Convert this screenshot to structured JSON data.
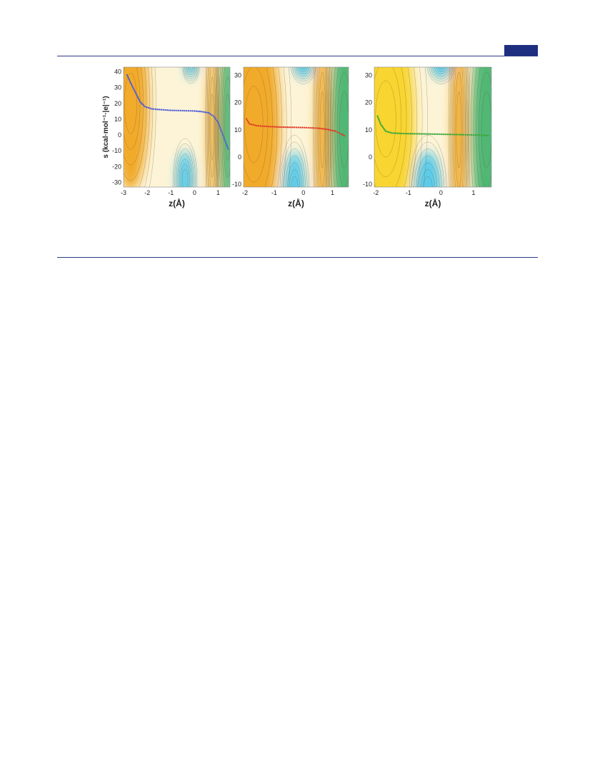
{
  "page": {
    "header_rule_color": "#2a3a8a",
    "badge_color": "#1f2f80"
  },
  "colors": {
    "orange": "#f0a21a",
    "yellow": "#f7d21e",
    "cream": "#fdf4d8",
    "white": "#ffffff",
    "cyan": "#49c6ec",
    "green": "#3db06a",
    "path_blue": "#4b5bd8",
    "path_red": "#e03a2a",
    "path_green": "#3aa83a"
  },
  "chart_data": [
    {
      "type": "heatmap",
      "description_label": "contour map",
      "xlabel": "z(Å)",
      "ylabel": "s (kcal·mol⁻¹·|e|⁻¹)",
      "xlim": [
        -3,
        1.5
      ],
      "ylim": [
        -33,
        43
      ],
      "xticks": [
        "-3",
        "-2",
        "-1",
        "0",
        "1"
      ],
      "xtick_values": [
        -3,
        -2,
        -1,
        0,
        1
      ],
      "yticks": [
        "40",
        "30",
        "20",
        "10",
        "0",
        "-10",
        "-20",
        "-30"
      ],
      "ytick_values": [
        40,
        30,
        20,
        10,
        0,
        -10,
        -20,
        -30
      ],
      "path_color": "blue",
      "path": {
        "x": [
          -2.85,
          -2.7,
          -2.5,
          -2.3,
          -2.1,
          -1.8,
          -1.4,
          -1.0,
          -0.5,
          0.0,
          0.3,
          0.6,
          0.8,
          1.0,
          1.15,
          1.3,
          1.45
        ],
        "y": [
          38,
          33,
          27,
          21,
          18,
          16.5,
          16,
          15.6,
          15.4,
          15.2,
          14.8,
          14,
          12,
          8,
          2,
          -4,
          -10
        ]
      },
      "regions": [
        {
          "color": "orange",
          "x": -2.7,
          "y": 20,
          "rx": 0.75,
          "ry": 55
        },
        {
          "color": "cyan",
          "x": -0.4,
          "y": -28,
          "rx": 0.35,
          "ry": 18
        },
        {
          "color": "cyan",
          "x": -0.15,
          "y": 44,
          "rx": 0.25,
          "ry": 8
        },
        {
          "color": "orange",
          "x": 0.75,
          "y": 5,
          "rx": 0.2,
          "ry": 60
        },
        {
          "color": "green",
          "x": 1.4,
          "y": 5,
          "rx": 0.35,
          "ry": 60
        }
      ]
    },
    {
      "type": "heatmap",
      "description_label": "contour map",
      "xlabel": "z(Å)",
      "ylabel": "",
      "xlim": [
        -2.05,
        1.55
      ],
      "ylim": [
        -11,
        33
      ],
      "xticks": [
        "-2",
        "-1",
        "0",
        "1"
      ],
      "xtick_values": [
        -2,
        -1,
        0,
        1
      ],
      "yticks": [
        "30",
        "20",
        "10",
        "0",
        "-10"
      ],
      "ytick_values": [
        30,
        20,
        10,
        0,
        -10
      ],
      "path_color": "red",
      "path": {
        "x": [
          -1.95,
          -1.85,
          -1.6,
          -1.2,
          -0.8,
          -0.3,
          0.1,
          0.5,
          0.8,
          1.1,
          1.3,
          1.45
        ],
        "y": [
          14,
          12.2,
          11.5,
          11.2,
          11,
          10.9,
          10.8,
          10.6,
          10.2,
          9.5,
          8.5,
          7.5
        ]
      },
      "regions": [
        {
          "color": "orange",
          "x": -1.7,
          "y": 12,
          "rx": 0.9,
          "ry": 40
        },
        {
          "color": "cyan",
          "x": -0.3,
          "y": -12,
          "rx": 0.35,
          "ry": 14
        },
        {
          "color": "cyan",
          "x": 0.0,
          "y": 34,
          "rx": 0.3,
          "ry": 5
        },
        {
          "color": "orange",
          "x": 0.65,
          "y": 10,
          "rx": 0.22,
          "ry": 40
        },
        {
          "color": "green",
          "x": 1.4,
          "y": 10,
          "rx": 0.45,
          "ry": 40
        }
      ]
    },
    {
      "type": "heatmap",
      "description_label": "contour map",
      "xlabel": "z(Å)",
      "ylabel": "",
      "xlim": [
        -2.05,
        1.55
      ],
      "ylim": [
        -11,
        33
      ],
      "xticks": [
        "-2",
        "-1",
        "0",
        "1"
      ],
      "xtick_values": [
        -2,
        -1,
        0,
        1
      ],
      "yticks": [
        "30",
        "20",
        "10",
        "0",
        "-10"
      ],
      "ytick_values": [
        30,
        20,
        10,
        0,
        -10
      ],
      "path_color": "green",
      "path": {
        "x": [
          -1.95,
          -1.85,
          -1.7,
          -1.5,
          -1.1,
          -0.6,
          -0.1,
          0.3,
          0.7,
          1.0,
          1.3,
          1.5
        ],
        "y": [
          15,
          12,
          9.5,
          8.8,
          8.6,
          8.5,
          8.4,
          8.3,
          8.2,
          8.1,
          8.0,
          7.8
        ]
      },
      "regions": [
        {
          "color": "yellow",
          "x": -1.7,
          "y": 14,
          "rx": 0.9,
          "ry": 40
        },
        {
          "color": "cyan",
          "x": -0.4,
          "y": -12,
          "rx": 0.4,
          "ry": 14
        },
        {
          "color": "cyan",
          "x": 0.0,
          "y": 34,
          "rx": 0.3,
          "ry": 5
        },
        {
          "color": "orange",
          "x": 0.55,
          "y": 10,
          "rx": 0.22,
          "ry": 40
        },
        {
          "color": "green",
          "x": 1.4,
          "y": 10,
          "rx": 0.45,
          "ry": 40
        }
      ]
    }
  ]
}
